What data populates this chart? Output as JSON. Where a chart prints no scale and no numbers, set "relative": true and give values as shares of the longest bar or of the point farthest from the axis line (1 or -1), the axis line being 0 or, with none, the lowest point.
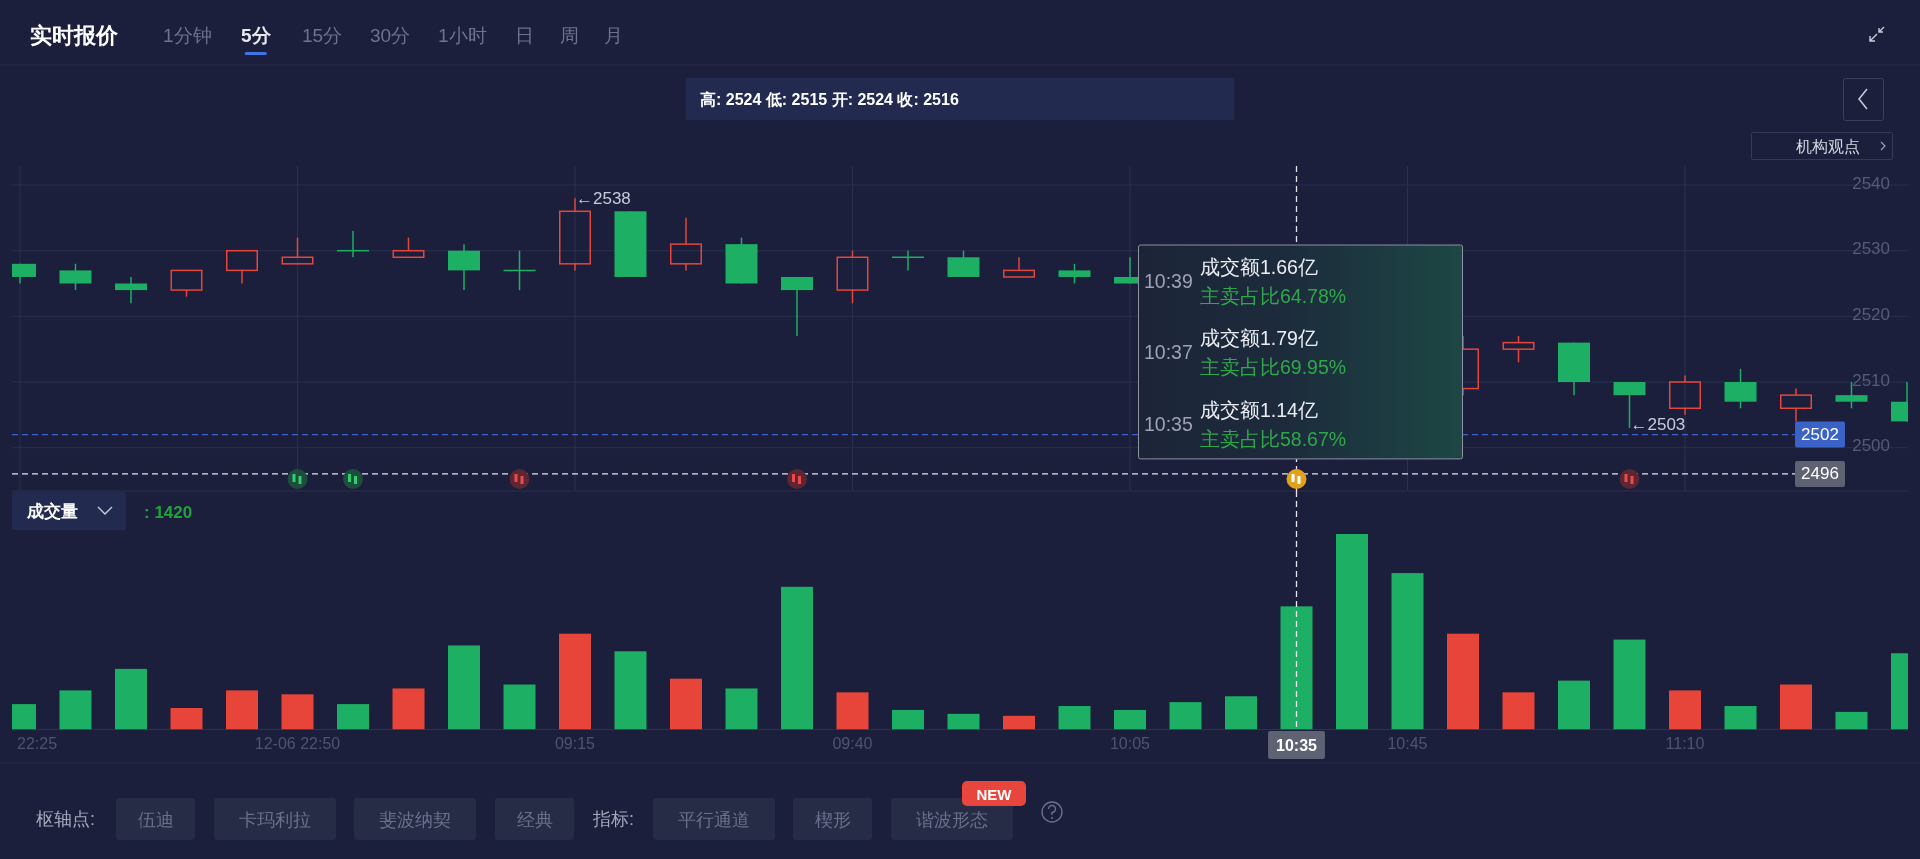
{
  "chart_data": [
    {
      "type": "candlestick",
      "title": "实时报价",
      "categories": [
        "22:25",
        null,
        null,
        null,
        null,
        "12-06 22:50",
        null,
        null,
        null,
        null,
        "09:15",
        null,
        null,
        null,
        null,
        "09:40",
        null,
        null,
        null,
        null,
        "10:05",
        null,
        null,
        "10:35",
        null,
        "10:45",
        null,
        null,
        null,
        null,
        "11:10",
        null,
        null,
        null,
        null
      ],
      "ohlc": [
        [
          2528,
          2528,
          2525,
          2526
        ],
        [
          2527,
          2528,
          2524,
          2525
        ],
        [
          2525,
          2526,
          2522,
          2524
        ],
        [
          2524,
          2527,
          2523,
          2527
        ],
        [
          2527,
          2530,
          2525,
          2530
        ],
        [
          2528,
          2532,
          2528,
          2529
        ],
        [
          2530,
          2533,
          2529,
          2530
        ],
        [
          2529,
          2532,
          2529,
          2530
        ],
        [
          2530,
          2531,
          2524,
          2527
        ],
        [
          2527,
          2530,
          2524,
          2527
        ],
        [
          2528,
          2538,
          2527,
          2536
        ],
        [
          2536,
          2536,
          2526,
          2526
        ],
        [
          2528,
          2535,
          2527,
          2531
        ],
        [
          2531,
          2532,
          2525,
          2525
        ],
        [
          2526,
          2526,
          2517,
          2524
        ],
        [
          2524,
          2530,
          2522,
          2529
        ],
        [
          2529,
          2530,
          2527,
          2529
        ],
        [
          2529,
          2530,
          2526,
          2526
        ],
        [
          2526,
          2529,
          2526,
          2527
        ],
        [
          2527,
          2528,
          2525,
          2526
        ],
        [
          2526,
          2529,
          2525,
          2525
        ],
        null,
        null,
        null,
        null,
        null,
        [
          2509,
          2517,
          2508,
          2515
        ],
        [
          2515,
          2517,
          2513,
          2516
        ],
        [
          2516,
          2516,
          2508,
          2510
        ],
        [
          2510,
          2510,
          2503,
          2508
        ],
        [
          2506,
          2511,
          2505,
          2510
        ],
        [
          2510,
          2512,
          2506,
          2507
        ],
        [
          2506,
          2509,
          2504,
          2508
        ],
        [
          2508,
          2510,
          2506,
          2507
        ],
        [
          2507,
          2510,
          2504,
          2504
        ]
      ],
      "colors": [
        "#1daf63",
        "#1daf63",
        "#1daf63",
        "#e5463b",
        "#e5463b",
        "#e5463b",
        "#1daf63",
        "#e5463b",
        "#1daf63",
        "#1daf63",
        "#e5463b",
        "#1daf63",
        "#e5463b",
        "#1daf63",
        "#1daf63",
        "#e5463b",
        "#1daf63",
        "#1daf63",
        "#e5463b",
        "#1daf63",
        "#1daf63",
        null,
        null,
        null,
        null,
        null,
        "#e5463b",
        "#e5463b",
        "#1daf63",
        "#1daf63",
        "#e5463b",
        "#1daf63",
        "#e5463b",
        "#1daf63",
        "#1daf63"
      ],
      "ylim": [
        2493.4,
        2542.9
      ],
      "yticks": [
        2500,
        2510,
        2520,
        2530,
        2540
      ],
      "grid": true,
      "tick_labels": "y",
      "ref_lines": [
        {
          "axis": "y",
          "value": 2502,
          "label": "2502",
          "color": "#3b62c6",
          "line_style": "dashed"
        },
        {
          "axis": "y",
          "value": 2496,
          "label": "2496",
          "color": "#e6e6ea",
          "line_style": "dashed"
        },
        {
          "axis": "x",
          "value": "10:35",
          "color": "#e6e6ea",
          "line_style": "dashed"
        }
      ],
      "annotations": [
        "1分钟",
        "5分",
        "15分",
        "30分",
        "1小时",
        "日",
        "周",
        "月",
        "高: 2524 低: 2515 开: 2524 收: 2516",
        "机构观点",
        "←2503",
        "10:39",
        "成交额1.66亿",
        "主卖占比64.78%",
        "10:37",
        "成交额1.79亿",
        "主卖占比69.95%",
        "10:35",
        "成交额1.14亿",
        "主卖占比58.67%",
        {
          "text": "←2538",
          "x": "09:15",
          "y": 2538
        }
      ]
    },
    {
      "type": "bar",
      "title": "成交量",
      "relative": true,
      "categories": [
        "22:25",
        null,
        null,
        null,
        null,
        "12-06 22:50",
        null,
        null,
        null,
        null,
        "09:15",
        null,
        null,
        null,
        null,
        "09:40",
        null,
        null,
        null,
        null,
        "10:05",
        null,
        null,
        "10:35",
        null,
        "10:45",
        null,
        null,
        null,
        null,
        "11:10",
        null,
        null,
        null,
        null
      ],
      "values": [
        0.13,
        0.2,
        0.31,
        0.11,
        0.2,
        0.18,
        0.13,
        0.21,
        0.43,
        0.23,
        0.49,
        0.4,
        0.26,
        0.21,
        0.73,
        0.19,
        0.1,
        0.08,
        0.07,
        0.12,
        0.1,
        0.14,
        0.17,
        0.63,
        1,
        0.8,
        0.49,
        0.19,
        0.25,
        0.46,
        0.2,
        0.12,
        0.23,
        0.09,
        0.39
      ],
      "colors": [
        "#1daf63",
        "#1daf63",
        "#1daf63",
        "#e8453a",
        "#e8453a",
        "#e8453a",
        "#1daf63",
        "#e8453a",
        "#1daf63",
        "#1daf63",
        "#e8453a",
        "#1daf63",
        "#e8453a",
        "#1daf63",
        "#1daf63",
        "#e8453a",
        "#1daf63",
        "#1daf63",
        "#e8453a",
        "#1daf63",
        "#1daf63",
        "#1daf63",
        "#1daf63",
        "#1daf63",
        "#1daf63",
        "#1daf63",
        "#e8453a",
        "#e8453a",
        "#1daf63",
        "#1daf63",
        "#e8453a",
        "#1daf63",
        "#e8453a",
        "#1daf63",
        "#1daf63"
      ],
      "tick_labels": "x",
      "ref_lines": [
        {
          "axis": "x",
          "value": "10:35",
          "color": "#e6e6ea",
          "line_style": "dashed"
        }
      ],
      "annotations": [
        ": 1420",
        "枢轴点:",
        "伍迪",
        "卡玛利拉",
        "斐波纳契",
        "经典",
        "指标:",
        "平行通道",
        "楔形",
        "谐波形态",
        "NEW"
      ]
    }
  ]
}
